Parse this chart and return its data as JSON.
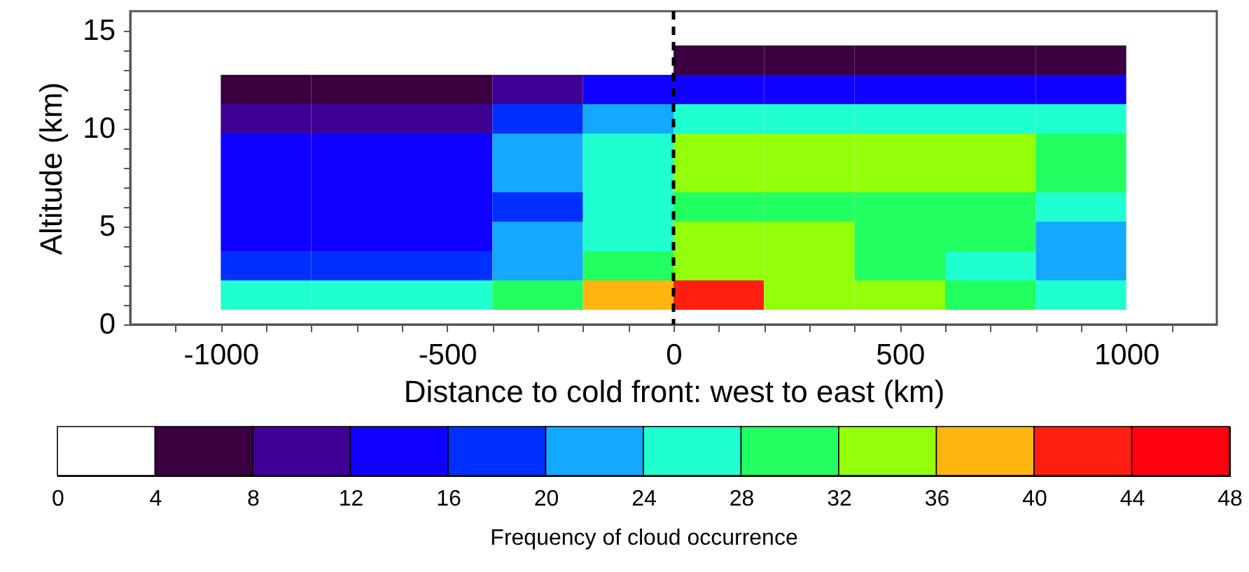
{
  "chart_data": {
    "type": "heatmap",
    "xlabel": "Distance to cold front: west to east (km)",
    "ylabel": "Altitude (km)",
    "clabel": "Frequency of cloud occurrence",
    "x": [
      -900,
      -700,
      -500,
      -300,
      -100,
      100,
      300,
      500,
      700,
      900
    ],
    "y": [
      13.5,
      12,
      10.5,
      9,
      7.5,
      6,
      4.5,
      3,
      1.5
    ],
    "cells": [
      [
        null,
        null,
        null,
        null,
        null,
        6,
        6,
        6,
        6,
        6
      ],
      [
        6,
        6,
        6,
        10,
        14,
        14,
        14,
        14,
        14,
        14
      ],
      [
        10,
        10,
        10,
        18,
        22,
        26,
        26,
        26,
        26,
        26
      ],
      [
        14,
        14,
        14,
        22,
        26,
        34,
        34,
        34,
        34,
        30
      ],
      [
        14,
        14,
        14,
        22,
        26,
        34,
        34,
        34,
        34,
        30
      ],
      [
        14,
        14,
        14,
        18,
        26,
        30,
        30,
        30,
        30,
        26
      ],
      [
        14,
        14,
        14,
        22,
        26,
        34,
        34,
        30,
        30,
        22
      ],
      [
        18,
        18,
        18,
        22,
        30,
        34,
        34,
        30,
        26,
        22
      ],
      [
        26,
        26,
        26,
        30,
        38,
        42,
        34,
        34,
        30,
        26
      ]
    ],
    "colors": [
      "#ffffff",
      "#3a0040",
      "#3f0096",
      "#1000ff",
      "#0030ff",
      "#14a8ff",
      "#20ffd0",
      "#22ff60",
      "#94ff0a",
      "#ffb410",
      "#ff1e10",
      "#ff0010"
    ],
    "clim": [
      0,
      48
    ],
    "cticks": [
      0,
      4,
      8,
      12,
      16,
      20,
      24,
      28,
      32,
      36,
      40,
      44,
      48
    ],
    "xlim": [
      -1200,
      1200
    ],
    "xticks": [
      {
        "value": -1100,
        "label": null
      },
      -1000,
      {
        "value": -900,
        "label": null
      },
      {
        "value": -800,
        "label": null
      },
      {
        "value": -700,
        "label": null
      },
      {
        "value": -600,
        "label": null
      },
      -500,
      {
        "value": -400,
        "label": null
      },
      {
        "value": -300,
        "label": null
      },
      {
        "value": -200,
        "label": null
      },
      {
        "value": -100,
        "label": null
      },
      0,
      {
        "value": 100,
        "label": null
      },
      {
        "value": 200,
        "label": null
      },
      {
        "value": 300,
        "label": null
      },
      {
        "value": 400,
        "label": null
      },
      500,
      {
        "value": 600,
        "label": null
      },
      {
        "value": 700,
        "label": null
      },
      {
        "value": 800,
        "label": null
      },
      {
        "value": 900,
        "label": null
      },
      1000,
      {
        "value": 1100,
        "label": null
      }
    ],
    "ylim": [
      0,
      16
    ],
    "yticks": [
      0,
      {
        "value": 1,
        "label": null
      },
      {
        "value": 2,
        "label": null
      },
      {
        "value": 3,
        "label": null
      },
      {
        "value": 4,
        "label": null
      },
      5,
      {
        "value": 6,
        "label": null
      },
      {
        "value": 7,
        "label": null
      },
      {
        "value": 8,
        "label": null
      },
      {
        "value": 9,
        "label": null
      },
      10,
      {
        "value": 11,
        "label": null
      },
      {
        "value": 12,
        "label": null
      },
      {
        "value": 13,
        "label": null
      },
      {
        "value": 14,
        "label": null
      },
      15
    ],
    "ref_lines": [
      {
        "axis": "x",
        "value": 0,
        "color": "#000000",
        "line_style": "dashed"
      }
    ],
    "grid": false
  }
}
